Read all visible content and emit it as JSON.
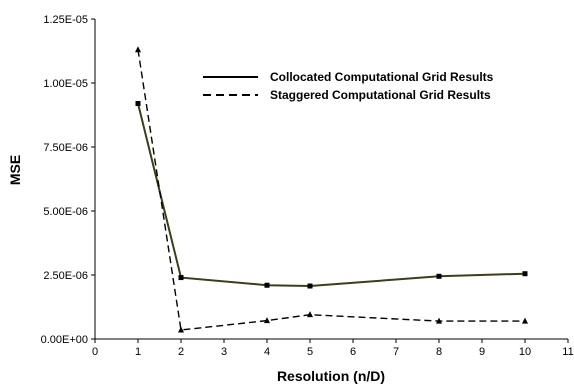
{
  "chart_data": {
    "type": "line",
    "xlabel": "Resolution (n/D)",
    "ylabel": "MSE",
    "xlim": [
      0,
      11
    ],
    "ylim": [
      0,
      1.25e-05
    ],
    "x_ticks": [
      "0",
      "1",
      "2",
      "3",
      "4",
      "5",
      "6",
      "7",
      "8",
      "9",
      "10",
      "11"
    ],
    "y_ticks": [
      "0.00E+00",
      "2.50E-06",
      "5.00E-06",
      "7.50E-06",
      "1.00E-05",
      "1.25E-05"
    ],
    "grid": false,
    "legend_position": "top-right",
    "series": [
      {
        "name": "Collocated Computational Grid Results",
        "style": "solid",
        "marker": "square",
        "color": "#3d3d1a",
        "x": [
          1,
          2,
          4,
          5,
          8,
          10
        ],
        "y": [
          9.2e-06,
          2.4e-06,
          2.1e-06,
          2.07e-06,
          2.45e-06,
          2.55e-06
        ]
      },
      {
        "name": "Staggered Computational Grid Results",
        "style": "dashed",
        "marker": "triangle",
        "color": "#000000",
        "x": [
          1,
          2,
          4,
          5,
          8,
          10
        ],
        "y": [
          1.13e-05,
          3.5e-07,
          7.2e-07,
          9.5e-07,
          7e-07,
          7e-07
        ]
      }
    ]
  }
}
